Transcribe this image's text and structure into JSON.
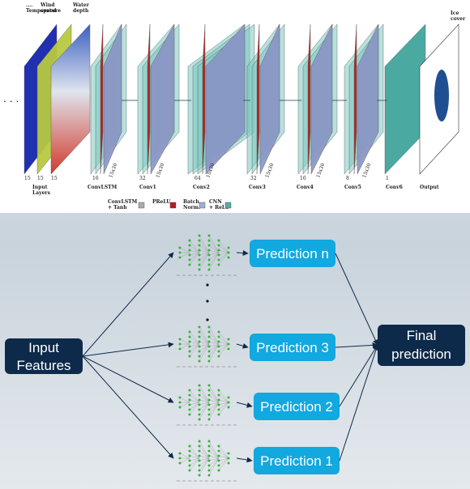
{
  "architecture": {
    "input_labels": [
      [
        "....",
        "Temperature"
      ],
      [
        "Wind",
        "speed"
      ],
      [
        "Water",
        "depth"
      ]
    ],
    "output_label": [
      "Ice",
      "cover"
    ],
    "layers": [
      {
        "name": [
          "Input",
          "Layers"
        ],
        "channels": [
          "15",
          "15",
          "15"
        ]
      },
      {
        "name": [
          "ConvLSTM"
        ],
        "channels": [
          "16"
        ],
        "size": "15x30"
      },
      {
        "name": [
          "Conv1"
        ],
        "channels": [
          "32"
        ],
        "size": "15x30"
      },
      {
        "name": [
          "Conv2"
        ],
        "channels": [
          "64"
        ],
        "size": "15x30"
      },
      {
        "name": [
          "Conv3"
        ],
        "channels": [
          "32"
        ],
        "size": "15x30"
      },
      {
        "name": [
          "Conv4"
        ],
        "channels": [
          "16"
        ],
        "size": "15x30"
      },
      {
        "name": [
          "Conv5"
        ],
        "channels": [
          "8"
        ],
        "size": "15x30"
      },
      {
        "name": [
          "Conv6"
        ],
        "channels": [
          "1"
        ]
      },
      {
        "name": [
          "Output"
        ]
      }
    ],
    "legend": [
      [
        "ConvLSTM",
        "+ Tanh"
      ],
      [
        "PReLU"
      ],
      [
        "Batch",
        "Norm."
      ],
      [
        "CNN",
        "+ ReLU"
      ]
    ]
  },
  "ensemble": {
    "input": [
      "Input",
      "Features"
    ],
    "predictions": [
      "Prediction n",
      "Prediction 3",
      "Prediction 2",
      "Prediction 1"
    ],
    "final": [
      "Final",
      "prediction"
    ]
  }
}
